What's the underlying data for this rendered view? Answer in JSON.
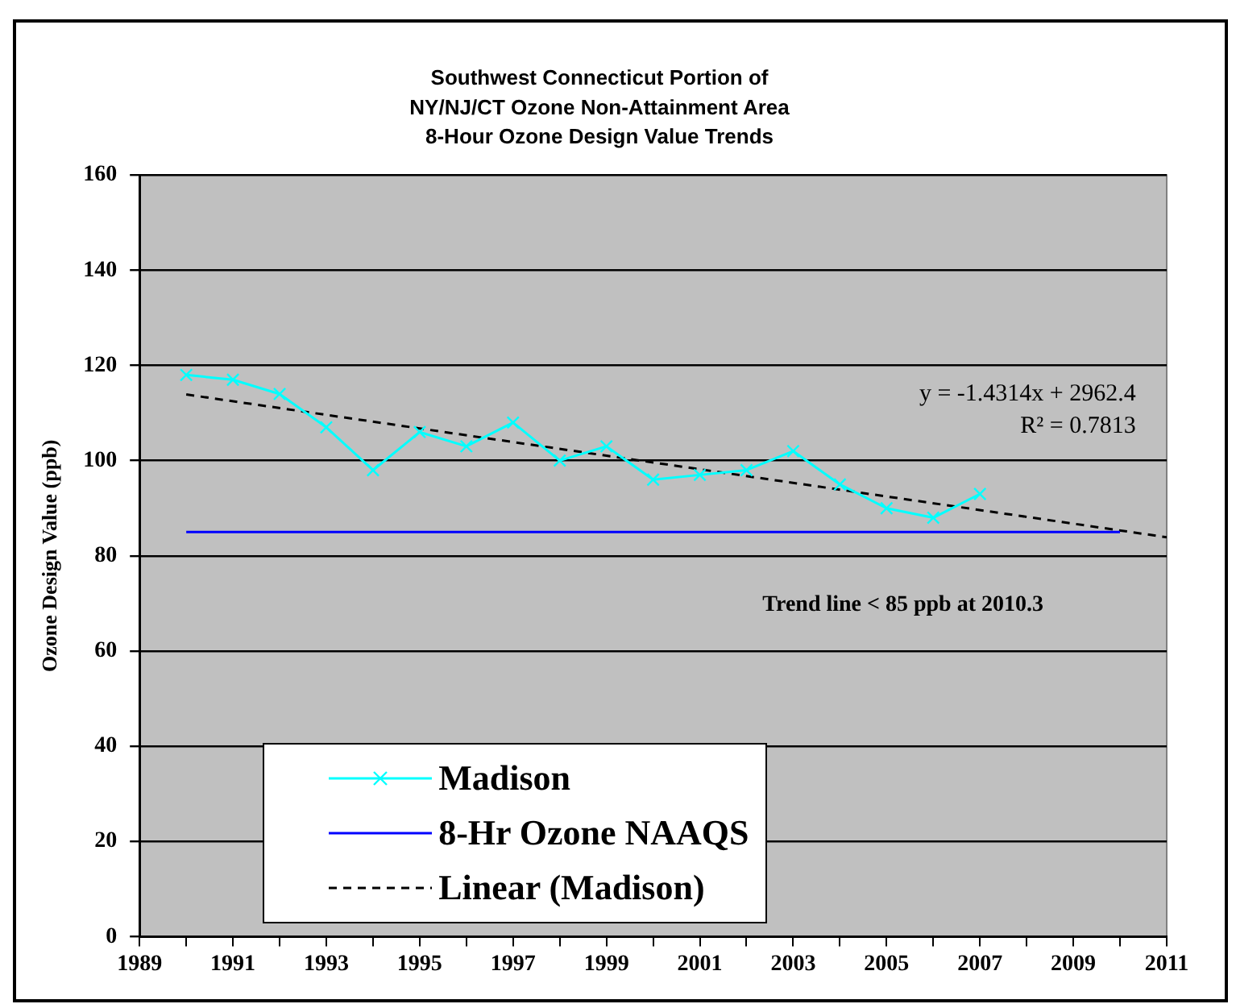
{
  "chart_data": {
    "type": "line",
    "title": "Southwest Connecticut Portion of\nNY/NJ/CT Ozone Non-Attainment Area\n8-Hour Ozone Design Value Trends",
    "ylabel": "Ozone Design Value (ppb)",
    "series": [
      {
        "name": "Madison",
        "color": "#00ffff",
        "marker": "cross",
        "line_style": "solid",
        "x": [
          1990,
          1991,
          1992,
          1993,
          1994,
          1995,
          1996,
          1997,
          1998,
          1999,
          2000,
          2001,
          2002,
          2003,
          2004,
          2005,
          2006,
          2007
        ],
        "values": [
          118,
          117,
          114,
          107,
          98,
          106,
          103,
          108,
          100,
          103,
          96,
          97,
          98,
          102,
          95,
          90,
          88,
          93
        ]
      },
      {
        "name": "8-Hr Ozone NAAQS",
        "color": "#0000ff",
        "marker": "none",
        "line_style": "solid",
        "x": [
          1990,
          2010
        ],
        "values": [
          85,
          85
        ]
      },
      {
        "name": "Linear (Madison)",
        "color": "#000000",
        "marker": "none",
        "line_style": "dashed",
        "x": [
          1990,
          2011
        ],
        "values": [
          113.9,
          83.9
        ]
      }
    ],
    "xlim": [
      1989,
      2011
    ],
    "ylim": [
      0,
      160
    ],
    "xticks": [
      1989,
      {
        "value": 1990,
        "label": null
      },
      1991,
      {
        "value": 1992,
        "label": null
      },
      1993,
      {
        "value": 1994,
        "label": null
      },
      1995,
      {
        "value": 1996,
        "label": null
      },
      1997,
      {
        "value": 1998,
        "label": null
      },
      1999,
      {
        "value": 2000,
        "label": null
      },
      2001,
      {
        "value": 2002,
        "label": null
      },
      2003,
      {
        "value": 2004,
        "label": null
      },
      2005,
      {
        "value": 2006,
        "label": null
      },
      2007,
      {
        "value": 2008,
        "label": null
      },
      2009,
      {
        "value": 2010,
        "label": null
      },
      2011
    ],
    "yticks": [
      0,
      20,
      40,
      60,
      80,
      100,
      120,
      140,
      160
    ],
    "grid": "y",
    "legend": "bottom left",
    "annotations": [
      "y = -1.4314x + 2962.4",
      "R² = 0.7813",
      "Trend line < 85 ppb at 2010.3"
    ]
  }
}
